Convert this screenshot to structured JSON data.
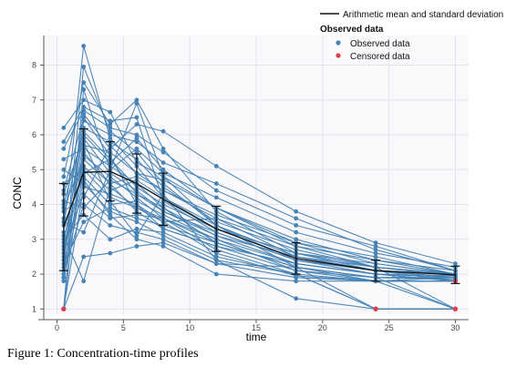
{
  "caption": "Figure 1: Concentration-time profiles",
  "chart_data": {
    "type": "line",
    "xlabel": "time",
    "ylabel": "CONC",
    "xlim": [
      -1,
      31
    ],
    "ylim": [
      0.85,
      8.85
    ],
    "xticks": [
      0,
      5,
      10,
      15,
      20,
      25,
      30
    ],
    "yticks": [
      1,
      2,
      3,
      4,
      5,
      6,
      7,
      8
    ],
    "grid": true,
    "legend": {
      "placement": "top-right",
      "mean_label": "Arithmetic mean and standard deviation",
      "heading": "Observed data",
      "observed_label": "Observed data",
      "censored_label": "Censored data"
    },
    "colors": {
      "observed": "#4682b4",
      "censored": "#d9414f",
      "mean": "#111111",
      "background": "#f9f9fc",
      "grid": "#e3e3eb"
    },
    "time_points": [
      0.5,
      2,
      4,
      6,
      8,
      12,
      18,
      24,
      30
    ],
    "mean": {
      "name": "Arithmetic mean and standard deviation",
      "values": [
        3.35,
        4.92,
        4.95,
        4.6,
        4.15,
        3.3,
        2.45,
        2.1,
        1.98
      ],
      "sd": [
        1.25,
        1.25,
        0.85,
        0.85,
        0.75,
        0.65,
        0.45,
        0.3,
        0.25
      ]
    },
    "observed_profiles": [
      [
        3.2,
        8.55,
        5.9,
        5.1,
        4.2,
        3.3,
        2.6,
        2.3,
        2.0
      ],
      [
        2.1,
        7.95,
        6.1,
        5.5,
        4.6,
        3.4,
        2.4,
        2.1,
        1.9
      ],
      [
        4.8,
        7.5,
        6.3,
        7.0,
        5.6,
        3.8,
        2.6,
        2.1,
        2.0
      ],
      [
        1.0,
        7.3,
        5.0,
        6.9,
        4.8,
        3.4,
        2.2,
        1.9,
        1.0
      ],
      [
        6.2,
        7.0,
        6.65,
        5.2,
        4.8,
        3.9,
        2.9,
        2.5,
        2.0
      ],
      [
        5.8,
        6.8,
        6.4,
        6.5,
        4.1,
        3.2,
        2.4,
        2.1,
        2.0
      ],
      [
        2.5,
        6.6,
        5.6,
        6.3,
        6.1,
        5.1,
        3.8,
        2.9,
        2.3
      ],
      [
        1.9,
        6.4,
        6.0,
        5.8,
        5.2,
        4.6,
        3.6,
        2.7,
        2.1
      ],
      [
        3.6,
        6.2,
        5.8,
        5.3,
        4.5,
        3.5,
        2.7,
        2.2,
        2.0
      ],
      [
        2.9,
        6.0,
        5.2,
        5.9,
        5.0,
        3.9,
        2.8,
        2.4,
        2.1
      ],
      [
        4.3,
        5.9,
        4.9,
        4.4,
        3.8,
        3.1,
        2.3,
        2.0,
        1.8
      ],
      [
        1.0,
        5.7,
        5.5,
        4.9,
        4.4,
        3.6,
        2.5,
        2.1,
        1.8
      ],
      [
        5.3,
        5.6,
        5.1,
        4.6,
        3.9,
        2.9,
        2.2,
        1.8,
        1.8
      ],
      [
        1.8,
        5.4,
        4.8,
        4.2,
        3.6,
        2.9,
        2.2,
        1.9,
        1.9
      ],
      [
        3.9,
        5.3,
        4.6,
        4.8,
        4.4,
        3.7,
        2.9,
        2.3,
        2.0
      ],
      [
        2.6,
        5.1,
        4.4,
        4.7,
        4.2,
        3.4,
        2.5,
        2.1,
        1.9
      ],
      [
        4.6,
        5.0,
        4.2,
        3.9,
        3.5,
        2.6,
        1.95,
        1.8,
        1.9
      ],
      [
        2.2,
        4.9,
        5.3,
        4.5,
        4.0,
        3.3,
        2.6,
        2.2,
        2.0
      ],
      [
        3.4,
        4.8,
        4.0,
        4.1,
        3.7,
        3.0,
        2.3,
        2.0,
        1.95
      ],
      [
        5.0,
        4.6,
        3.8,
        3.5,
        3.1,
        2.4,
        1.3,
        1.0,
        1.0
      ],
      [
        1.0,
        4.5,
        4.3,
        4.0,
        3.3,
        2.8,
        2.1,
        1.9,
        1.85
      ],
      [
        2.8,
        4.3,
        3.6,
        3.7,
        3.6,
        2.7,
        2.0,
        1.8,
        1.0
      ],
      [
        3.8,
        4.2,
        5.7,
        4.9,
        4.7,
        3.9,
        3.0,
        2.4,
        2.0
      ],
      [
        2.0,
        4.0,
        3.4,
        3.2,
        3.0,
        2.3,
        2.2,
        1.9,
        1.9
      ],
      [
        4.1,
        3.9,
        4.7,
        4.3,
        3.8,
        3.2,
        2.4,
        2.0,
        1.8
      ],
      [
        3.0,
        3.7,
        3.0,
        3.3,
        3.2,
        2.5,
        2.0,
        1.0,
        1.0
      ],
      [
        2.3,
        3.5,
        3.9,
        3.6,
        3.4,
        2.9,
        2.2,
        1.0,
        1.0
      ],
      [
        1.0,
        2.5,
        2.6,
        2.8,
        2.9,
        2.3,
        1.9,
        1.8,
        1.8
      ],
      [
        3.1,
        1.8,
        4.5,
        3.9,
        3.6,
        3.0,
        2.1,
        1.8,
        1.8
      ],
      [
        4.4,
        6.5,
        5.4,
        4.0,
        3.5,
        3.6,
        2.8,
        2.2,
        1.0
      ],
      [
        2.4,
        5.8,
        4.1,
        3.1,
        4.3,
        2.4,
        2.0,
        1.0,
        1.0
      ],
      [
        3.5,
        3.2,
        5.0,
        5.6,
        4.9,
        4.2,
        3.2,
        2.6,
        2.2
      ],
      [
        5.6,
        6.7,
        6.2,
        6.0,
        5.5,
        4.4,
        3.4,
        2.8,
        2.1
      ],
      [
        1.9,
        4.7,
        3.7,
        3.0,
        2.8,
        2.0,
        1.8,
        1.8,
        1.8
      ],
      [
        2.7,
        5.5,
        4.6,
        3.8,
        3.3,
        2.8,
        2.3,
        2.0,
        1.9
      ],
      [
        4.0,
        6.1,
        5.3,
        4.3,
        3.9,
        3.1,
        2.5,
        2.2,
        1.95
      ]
    ],
    "censored_points": [
      {
        "x": 0.5,
        "y": 1.0
      },
      {
        "x": 0.5,
        "y": 1.0
      },
      {
        "x": 24,
        "y": 1.0
      },
      {
        "x": 24,
        "y": 1.0
      },
      {
        "x": 30,
        "y": 1.0
      },
      {
        "x": 30,
        "y": 1.8
      },
      {
        "x": 30,
        "y": 1.0
      }
    ]
  }
}
